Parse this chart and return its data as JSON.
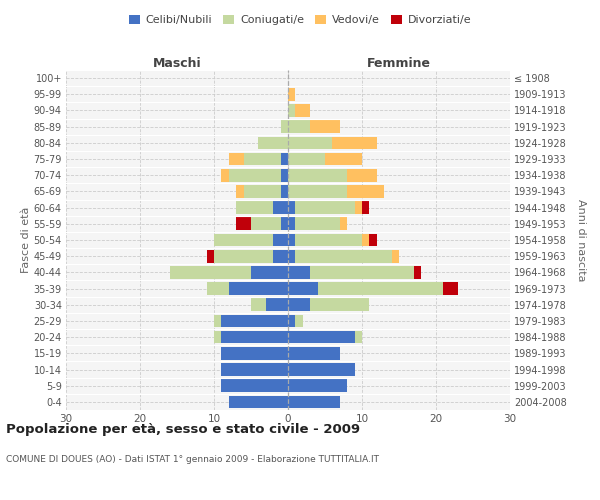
{
  "age_groups": [
    "0-4",
    "5-9",
    "10-14",
    "15-19",
    "20-24",
    "25-29",
    "30-34",
    "35-39",
    "40-44",
    "45-49",
    "50-54",
    "55-59",
    "60-64",
    "65-69",
    "70-74",
    "75-79",
    "80-84",
    "85-89",
    "90-94",
    "95-99",
    "100+"
  ],
  "birth_years": [
    "2004-2008",
    "1999-2003",
    "1994-1998",
    "1989-1993",
    "1984-1988",
    "1979-1983",
    "1974-1978",
    "1969-1973",
    "1964-1968",
    "1959-1963",
    "1954-1958",
    "1949-1953",
    "1944-1948",
    "1939-1943",
    "1934-1938",
    "1929-1933",
    "1924-1928",
    "1919-1923",
    "1914-1918",
    "1909-1913",
    "≤ 1908"
  ],
  "maschi": {
    "celibi": [
      8,
      9,
      9,
      9,
      9,
      9,
      3,
      8,
      5,
      2,
      2,
      1,
      2,
      1,
      1,
      1,
      0,
      0,
      0,
      0,
      0
    ],
    "coniugati": [
      0,
      0,
      0,
      0,
      1,
      1,
      2,
      3,
      11,
      8,
      8,
      4,
      5,
      5,
      7,
      5,
      4,
      1,
      0,
      0,
      0
    ],
    "vedovi": [
      0,
      0,
      0,
      0,
      0,
      0,
      0,
      0,
      0,
      0,
      0,
      0,
      0,
      1,
      1,
      2,
      0,
      0,
      0,
      0,
      0
    ],
    "divorziati": [
      0,
      0,
      0,
      0,
      0,
      0,
      0,
      0,
      0,
      1,
      0,
      2,
      0,
      0,
      0,
      0,
      0,
      0,
      0,
      0,
      0
    ]
  },
  "femmine": {
    "nubili": [
      7,
      8,
      9,
      7,
      9,
      1,
      3,
      4,
      3,
      1,
      1,
      1,
      1,
      0,
      0,
      0,
      0,
      0,
      0,
      0,
      0
    ],
    "coniugate": [
      0,
      0,
      0,
      0,
      1,
      1,
      8,
      17,
      14,
      13,
      9,
      6,
      8,
      8,
      8,
      5,
      6,
      3,
      1,
      0,
      0
    ],
    "vedove": [
      0,
      0,
      0,
      0,
      0,
      0,
      0,
      0,
      0,
      1,
      1,
      1,
      1,
      5,
      4,
      5,
      6,
      4,
      2,
      1,
      0
    ],
    "divorziate": [
      0,
      0,
      0,
      0,
      0,
      0,
      0,
      2,
      1,
      0,
      1,
      0,
      1,
      0,
      0,
      0,
      0,
      0,
      0,
      0,
      0
    ]
  },
  "color_celibi": "#4472c4",
  "color_coniugati": "#c5d9a0",
  "color_vedovi": "#ffc060",
  "color_divorziati": "#c0000a",
  "xlim": 30,
  "title": "Popolazione per età, sesso e stato civile - 2009",
  "subtitle": "COMUNE DI DOUES (AO) - Dati ISTAT 1° gennaio 2009 - Elaborazione TUTTITALIA.IT",
  "ylabel_left": "Fasce di età",
  "ylabel_right": "Anni di nascita",
  "xlabel_left": "Maschi",
  "xlabel_right": "Femmine",
  "bg_color": "#f5f5f5",
  "grid_color": "#cccccc"
}
